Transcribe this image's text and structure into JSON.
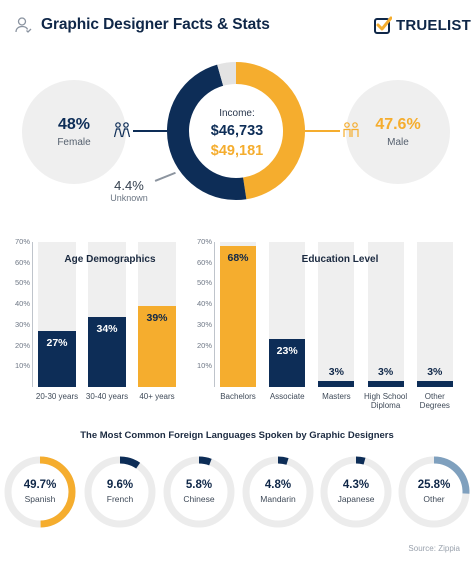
{
  "header": {
    "title": "Graphic Designer Facts & Stats",
    "brand": "TRUELIST"
  },
  "gender": {
    "female": {
      "pct": "48%",
      "label": "Female",
      "value": 48
    },
    "male": {
      "pct": "47.6%",
      "label": "Male",
      "value": 47.6
    },
    "unknown": {
      "pct": "4.4%",
      "label": "Unknown",
      "value": 4.4
    },
    "income_label": "Income:",
    "income_female": "$46,733",
    "income_male": "$49,181",
    "colors": {
      "female": "#0d2d57",
      "male": "#f5ad2e",
      "unknown": "#e3e3e3"
    }
  },
  "chart_data": [
    {
      "type": "bar",
      "title": "Age Demographics",
      "categories": [
        "20-30 years",
        "30-40 years",
        "40+ years"
      ],
      "values": [
        27,
        34,
        39
      ],
      "value_labels": [
        "27%",
        "34%",
        "39%"
      ],
      "colors": [
        "#0d2d57",
        "#0d2d57",
        "#f5ad2e"
      ],
      "ylim": [
        0,
        70
      ],
      "yticks": [
        "70%",
        "60%",
        "50%",
        "40%",
        "30%",
        "20%",
        "10%"
      ]
    },
    {
      "type": "bar",
      "title": "Education Level",
      "categories": [
        "Bachelors",
        "Associate",
        "Masters",
        "High School Diploma",
        "Other Degrees"
      ],
      "category_lines": [
        [
          "Bachelors"
        ],
        [
          "Associate"
        ],
        [
          "Masters"
        ],
        [
          "High School",
          "Diploma"
        ],
        [
          "Other",
          "Degrees"
        ]
      ],
      "values": [
        68,
        23,
        3,
        3,
        3
      ],
      "value_labels": [
        "68%",
        "23%",
        "3%",
        "3%",
        "3%"
      ],
      "colors": [
        "#f5ad2e",
        "#0d2d57",
        "#0d2d57",
        "#0d2d57",
        "#0d2d57"
      ],
      "ylim": [
        0,
        70
      ],
      "yticks": [
        "70%",
        "60%",
        "50%",
        "40%",
        "30%",
        "20%",
        "10%"
      ]
    },
    {
      "type": "pie",
      "title": "The Most Common Foreign Languages Spoken by Graphic Designers",
      "categories": [
        "Spanish",
        "French",
        "Chinese",
        "Mandarin",
        "Japanese",
        "Other"
      ],
      "values": [
        49.7,
        9.6,
        5.8,
        4.8,
        4.3,
        25.8
      ],
      "value_labels": [
        "49.7%",
        "9.6%",
        "5.8%",
        "4.8%",
        "4.3%",
        "25.8%"
      ],
      "colors": [
        "#f5ad2e",
        "#0d2d57",
        "#0d2d57",
        "#0d2d57",
        "#0d2d57",
        "#7fa0be"
      ]
    }
  ],
  "source": "Source: Zippia"
}
